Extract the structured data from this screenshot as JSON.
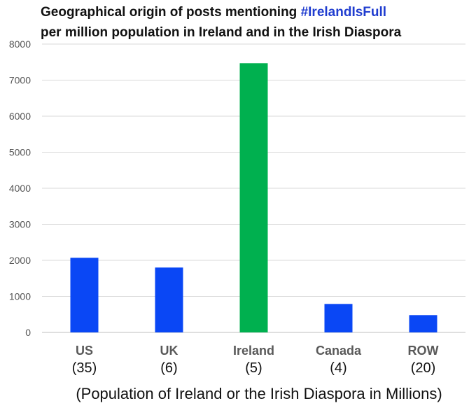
{
  "chart_data": {
    "type": "bar",
    "title_line1_prefix": "Geographical origin of posts mentioning ",
    "title_hashtag": "#IrelandIsFull",
    "title_line2": "per million population in Ireland and in the Irish Diaspora",
    "categories": [
      "US",
      "UK",
      "Ireland",
      "Canada",
      "ROW"
    ],
    "category_sublabels": [
      "(35)",
      "(6)",
      "(5)",
      "(4)",
      "(20)"
    ],
    "values": [
      2070,
      1800,
      7470,
      790,
      480
    ],
    "bar_colors": [
      "#0a47f5",
      "#0a47f5",
      "#00b04f",
      "#0a47f5",
      "#0a47f5"
    ],
    "xlabel": "(Population of Ireland or the Irish Diaspora in Millions)",
    "ylabel": "",
    "ylim": [
      0,
      8000
    ],
    "yticks": [
      0,
      1000,
      2000,
      3000,
      4000,
      5000,
      6000,
      7000,
      8000
    ],
    "grid": true,
    "legend": "none",
    "colors": {
      "hashtag": "#1f3ccf",
      "diaspora_bar": "#0a47f5",
      "ireland_bar": "#00b04f"
    }
  }
}
